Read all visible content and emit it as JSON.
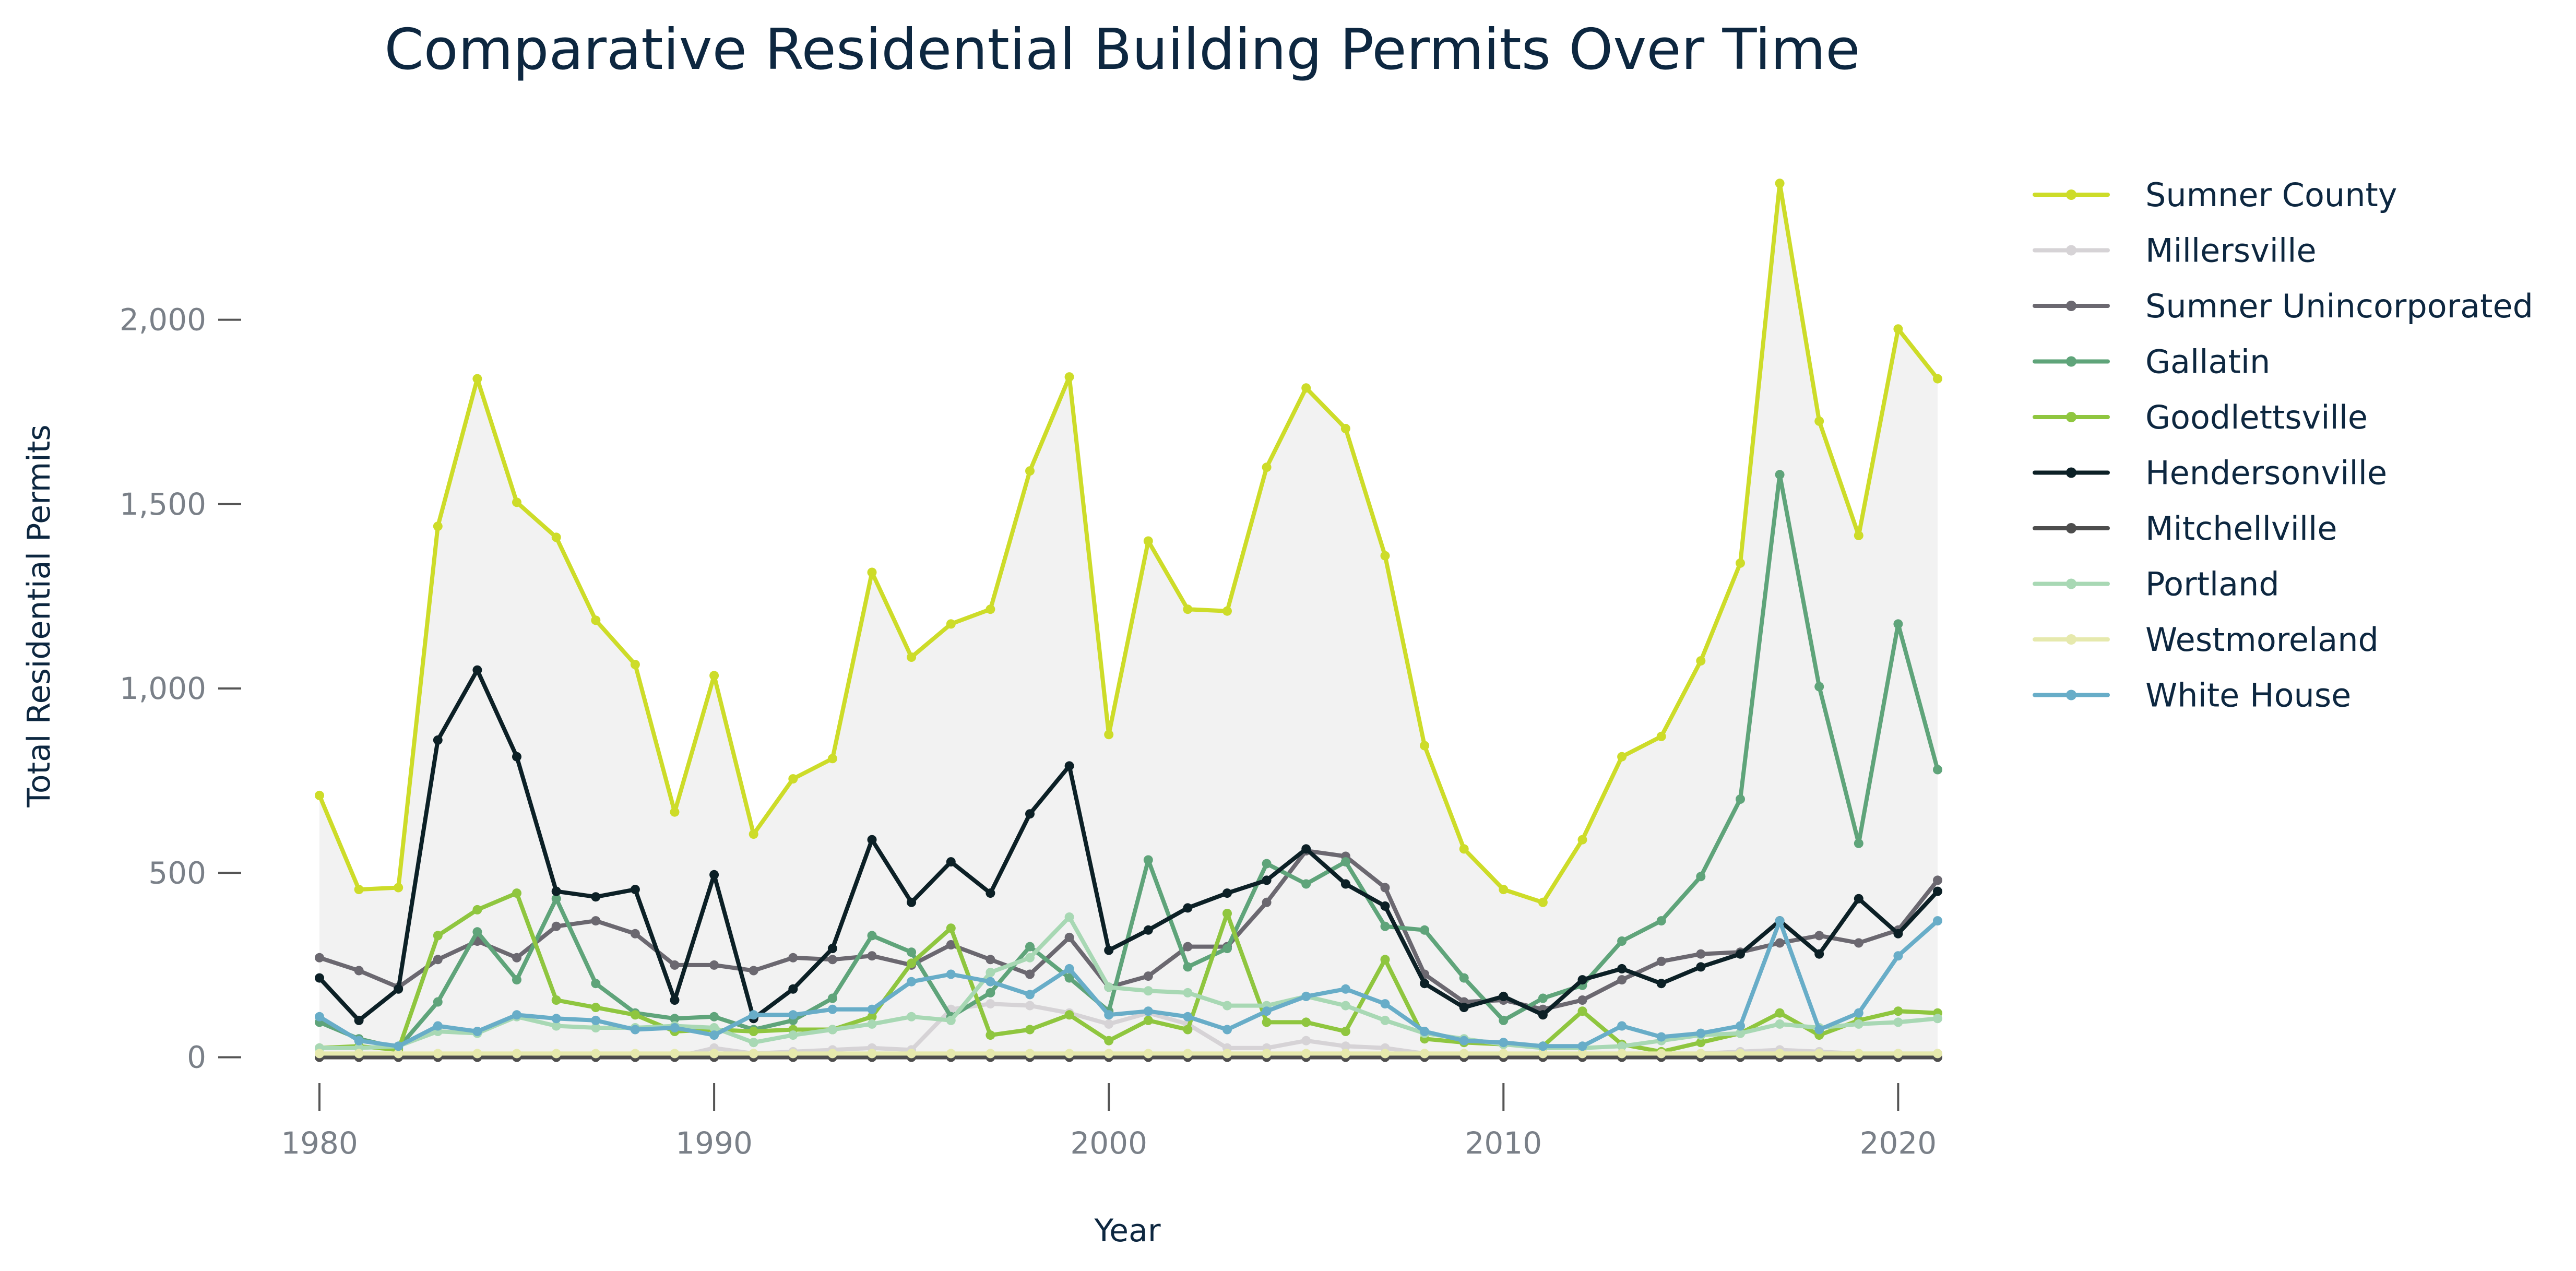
{
  "chart_data": {
    "type": "line",
    "title": "Comparative Residential Building Permits Over Time",
    "xlabel": "Year",
    "ylabel": "Total Residential Permits",
    "xlim": [
      1980,
      2021
    ],
    "ylim": [
      -155,
      2400
    ],
    "x_ticks": [
      1980,
      1990,
      2000,
      2010,
      2020
    ],
    "y_ticks": [
      0,
      500,
      1000,
      1500,
      2000
    ],
    "y_tick_labels": [
      "0",
      "500",
      "1,000",
      "1,500",
      "2,000"
    ],
    "grid": false,
    "legend_position": "right",
    "band": "shaded range between lowest and highest series each year",
    "x": [
      1980,
      1981,
      1982,
      1983,
      1984,
      1985,
      1986,
      1987,
      1988,
      1989,
      1990,
      1991,
      1992,
      1993,
      1994,
      1995,
      1996,
      1997,
      1998,
      1999,
      2000,
      2001,
      2002,
      2003,
      2004,
      2005,
      2006,
      2007,
      2008,
      2009,
      2010,
      2011,
      2012,
      2013,
      2014,
      2015,
      2016,
      2017,
      2018,
      2019,
      2020,
      2021
    ],
    "series": [
      {
        "name": "Sumner County",
        "color": "#cddc29",
        "values": [
          710,
          455,
          460,
          1440,
          1840,
          1505,
          1410,
          1185,
          1065,
          665,
          1035,
          605,
          755,
          810,
          1315,
          1085,
          1175,
          1215,
          1590,
          1845,
          875,
          1400,
          1215,
          1210,
          1600,
          1815,
          1705,
          1360,
          845,
          565,
          455,
          420,
          590,
          815,
          870,
          1075,
          1340,
          2370,
          1725,
          1415,
          1975,
          1840
        ]
      },
      {
        "name": "Millersville",
        "color": "#d6d3d6",
        "values": [
          0,
          0,
          0,
          0,
          0,
          0,
          0,
          0,
          0,
          0,
          25,
          10,
          15,
          20,
          25,
          20,
          130,
          145,
          140,
          120,
          90,
          120,
          90,
          25,
          25,
          45,
          30,
          25,
          10,
          5,
          5,
          5,
          10,
          10,
          10,
          10,
          15,
          20,
          15,
          10,
          10,
          10
        ]
      },
      {
        "name": "Sumner Unincorporated",
        "color": "#6b6870",
        "values": [
          270,
          235,
          190,
          265,
          315,
          270,
          355,
          370,
          335,
          250,
          250,
          235,
          270,
          265,
          275,
          250,
          305,
          265,
          225,
          325,
          190,
          220,
          300,
          300,
          420,
          560,
          545,
          460,
          225,
          150,
          155,
          130,
          155,
          210,
          260,
          280,
          285,
          310,
          330,
          310,
          345,
          480
        ]
      },
      {
        "name": "Gallatin",
        "color": "#5fa47a",
        "values": [
          95,
          50,
          25,
          150,
          340,
          210,
          430,
          200,
          120,
          105,
          110,
          75,
          100,
          160,
          330,
          285,
          110,
          175,
          300,
          215,
          125,
          535,
          245,
          295,
          525,
          470,
          530,
          355,
          345,
          215,
          100,
          160,
          195,
          315,
          370,
          490,
          700,
          1580,
          1005,
          580,
          1175,
          780
        ]
      },
      {
        "name": "Goodlettsville",
        "color": "#8fc63f",
        "values": [
          25,
          30,
          20,
          330,
          400,
          445,
          155,
          135,
          115,
          70,
          75,
          70,
          75,
          75,
          110,
          255,
          350,
          60,
          75,
          115,
          45,
          100,
          75,
          390,
          95,
          95,
          70,
          265,
          50,
          40,
          35,
          30,
          125,
          35,
          15,
          40,
          65,
          120,
          60,
          100,
          125,
          120
        ]
      },
      {
        "name": "Hendersonville",
        "color": "#0c2026",
        "values": [
          215,
          100,
          185,
          860,
          1050,
          815,
          450,
          435,
          455,
          155,
          495,
          105,
          185,
          295,
          590,
          420,
          530,
          445,
          660,
          790,
          290,
          345,
          405,
          445,
          480,
          565,
          470,
          410,
          200,
          135,
          165,
          115,
          210,
          240,
          200,
          245,
          280,
          370,
          280,
          430,
          335,
          450
        ]
      },
      {
        "name": "Mitchellville",
        "color": "#4d4d4d",
        "values": [
          0,
          0,
          0,
          0,
          0,
          0,
          0,
          0,
          0,
          0,
          0,
          0,
          0,
          0,
          0,
          0,
          0,
          0,
          0,
          0,
          0,
          0,
          0,
          0,
          0,
          0,
          0,
          0,
          0,
          0,
          0,
          0,
          0,
          0,
          0,
          0,
          0,
          0,
          0,
          0,
          0,
          0
        ]
      },
      {
        "name": "Portland",
        "color": "#a8d8b4",
        "values": [
          25,
          25,
          30,
          70,
          65,
          110,
          85,
          80,
          80,
          85,
          80,
          40,
          60,
          75,
          90,
          110,
          100,
          230,
          270,
          380,
          190,
          180,
          175,
          140,
          140,
          165,
          140,
          100,
          65,
          50,
          35,
          25,
          25,
          30,
          45,
          60,
          65,
          90,
          80,
          90,
          95,
          105
        ]
      },
      {
        "name": "Westmoreland",
        "color": "#e6e9ad",
        "values": [
          10,
          10,
          10,
          10,
          10,
          10,
          10,
          10,
          10,
          10,
          10,
          10,
          10,
          10,
          10,
          10,
          10,
          10,
          10,
          10,
          10,
          10,
          10,
          10,
          10,
          10,
          10,
          10,
          10,
          10,
          10,
          10,
          10,
          10,
          10,
          10,
          10,
          10,
          10,
          10,
          10,
          10
        ]
      },
      {
        "name": "White House",
        "color": "#68adc8",
        "values": [
          110,
          45,
          30,
          85,
          70,
          115,
          105,
          100,
          75,
          80,
          60,
          115,
          115,
          130,
          130,
          205,
          225,
          205,
          170,
          240,
          115,
          125,
          110,
          75,
          125,
          165,
          185,
          145,
          70,
          45,
          40,
          30,
          30,
          85,
          55,
          65,
          85,
          370,
          75,
          120,
          275,
          370
        ]
      }
    ]
  }
}
